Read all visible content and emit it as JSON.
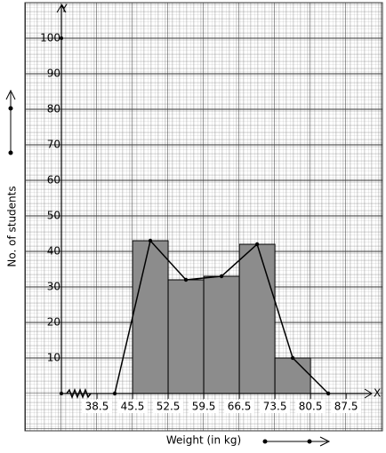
{
  "chart_data": {
    "type": "histogram",
    "x_label": "Weight (in kg)",
    "y_label": "No. of students",
    "x_axis_name": "X",
    "y_axis_name": "Y",
    "bins": [
      45.5,
      52.5,
      59.5,
      66.5,
      73.5,
      80.5
    ],
    "counts": [
      43,
      32,
      33,
      42,
      10
    ],
    "bar_color": "#8c8c8c",
    "polygon": {
      "x": [
        42,
        49,
        56,
        63,
        70,
        77,
        84
      ],
      "values": [
        0,
        43,
        32,
        33,
        42,
        10,
        0
      ],
      "color": "#000000"
    },
    "xlim": [
      31.5,
      91.5
    ],
    "ylim": [
      0,
      110
    ],
    "xticks": [
      38.5,
      45.5,
      52.5,
      59.5,
      66.5,
      73.5,
      80.5,
      87.5
    ],
    "yticks": [
      10,
      20,
      30,
      40,
      50,
      60,
      70,
      80,
      90,
      100
    ],
    "grid": true
  }
}
